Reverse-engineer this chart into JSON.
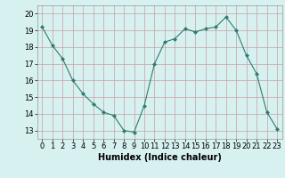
{
  "x": [
    0,
    1,
    2,
    3,
    4,
    5,
    6,
    7,
    8,
    9,
    10,
    11,
    12,
    13,
    14,
    15,
    16,
    17,
    18,
    19,
    20,
    21,
    22,
    23
  ],
  "y": [
    19.2,
    18.1,
    17.3,
    16.0,
    15.2,
    14.6,
    14.1,
    13.9,
    13.0,
    12.9,
    14.5,
    17.0,
    18.3,
    18.5,
    19.1,
    18.9,
    19.1,
    19.2,
    19.8,
    19.0,
    17.5,
    16.4,
    14.1,
    13.1
  ],
  "line_color": "#2e7d6e",
  "marker": "D",
  "marker_size": 2,
  "bg_color": "#d7f0f0",
  "grid_color": "#c8a0a0",
  "xlabel": "Humidex (Indice chaleur)",
  "ylim": [
    12.5,
    20.5
  ],
  "xlim": [
    -0.5,
    23.5
  ],
  "yticks": [
    13,
    14,
    15,
    16,
    17,
    18,
    19,
    20
  ],
  "xticks": [
    0,
    1,
    2,
    3,
    4,
    5,
    6,
    7,
    8,
    9,
    10,
    11,
    12,
    13,
    14,
    15,
    16,
    17,
    18,
    19,
    20,
    21,
    22,
    23
  ],
  "xlabel_fontsize": 7,
  "tick_fontsize": 6
}
